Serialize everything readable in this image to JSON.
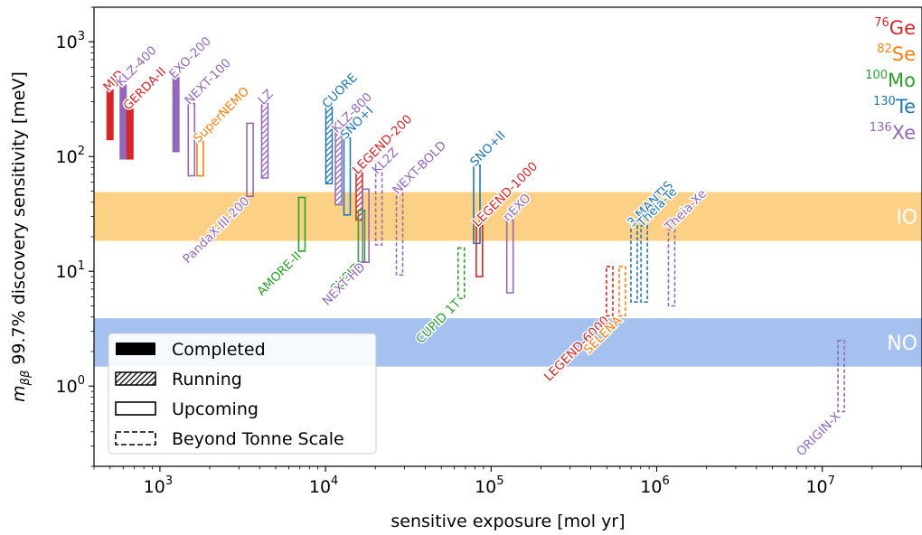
{
  "chart_data": {
    "type": "bar",
    "xlabel": "sensitive exposure [mol yr]",
    "ylabel_main": "m",
    "ylabel_sub": "ββ",
    "ylabel_rest": " 99.7% discovery sensitivity [meV]",
    "x_scale": "log",
    "y_scale": "log",
    "xlim": [
      400,
      40000000
    ],
    "ylim": [
      0.2,
      2000
    ],
    "x_ticks": [
      {
        "value": 1000,
        "base": "10",
        "exp": "3"
      },
      {
        "value": 10000,
        "base": "10",
        "exp": "4"
      },
      {
        "value": 100000,
        "base": "10",
        "exp": "5"
      },
      {
        "value": 1000000,
        "base": "10",
        "exp": "6"
      },
      {
        "value": 10000000,
        "base": "10",
        "exp": "7"
      }
    ],
    "y_ticks": [
      {
        "value": 1,
        "base": "10",
        "exp": "0"
      },
      {
        "value": 10,
        "base": "10",
        "exp": "1"
      },
      {
        "value": 100,
        "base": "10",
        "exp": "2"
      },
      {
        "value": 1000,
        "base": "10",
        "exp": "3"
      }
    ],
    "bands": [
      {
        "name": "IO",
        "y_low": 18.4,
        "y_high": 49,
        "color": "#fdd185"
      },
      {
        "name": "NO",
        "y_low": 1.48,
        "y_high": 3.9,
        "color": "#a6c1f0"
      }
    ],
    "isotopes": [
      {
        "mass": "76",
        "symbol": "Ge",
        "color": "#d62728"
      },
      {
        "mass": "82",
        "symbol": "Se",
        "color": "#ff7f0e"
      },
      {
        "mass": "100",
        "symbol": "Mo",
        "color": "#2ca02c"
      },
      {
        "mass": "130",
        "symbol": "Te",
        "color": "#1f77b4"
      },
      {
        "mass": "136",
        "symbol": "Xe",
        "color": "#9467bd"
      }
    ],
    "status_legend": [
      {
        "key": "completed",
        "label": "Completed"
      },
      {
        "key": "running",
        "label": "Running"
      },
      {
        "key": "upcoming",
        "label": "Upcoming"
      },
      {
        "key": "beyond",
        "label": "Beyond Tonne Scale"
      }
    ],
    "experiments": [
      {
        "name": "MJD",
        "isotope": "Ge",
        "status": "completed",
        "x": 500,
        "y_low": 140,
        "y_high": 380
      },
      {
        "name": "KLZ-400",
        "isotope": "Xe",
        "status": "completed",
        "x": 600,
        "y_low": 95,
        "y_high": 420
      },
      {
        "name": "GERDA-II",
        "isotope": "Ge",
        "status": "completed",
        "x": 660,
        "y_low": 95,
        "y_high": 260
      },
      {
        "name": "EXO-200",
        "isotope": "Xe",
        "status": "completed",
        "x": 1250,
        "y_low": 110,
        "y_high": 490
      },
      {
        "name": "NEXT-100",
        "isotope": "Xe",
        "status": "upcoming",
        "x": 1550,
        "y_low": 68,
        "y_high": 290
      },
      {
        "name": "SuperNEMO",
        "isotope": "Se",
        "status": "upcoming",
        "x": 1750,
        "y_low": 68,
        "y_high": 135
      },
      {
        "name": "PandaX-III-200",
        "isotope": "Xe",
        "status": "upcoming",
        "x": 3500,
        "y_low": 45,
        "y_high": 195
      },
      {
        "name": "LZ",
        "isotope": "Xe",
        "status": "running",
        "x": 4300,
        "y_low": 65,
        "y_high": 290
      },
      {
        "name": "AMORE-II",
        "isotope": "Mo",
        "status": "upcoming",
        "x": 7200,
        "y_low": 15,
        "y_high": 44
      },
      {
        "name": "CUORE",
        "isotope": "Te",
        "status": "running",
        "x": 10500,
        "y_low": 58,
        "y_high": 270
      },
      {
        "name": "KLZ-800",
        "isotope": "Xe",
        "status": "running",
        "x": 12000,
        "y_low": 38,
        "y_high": 165
      },
      {
        "name": "SNO+I",
        "isotope": "Te",
        "status": "upcoming",
        "x": 13500,
        "y_low": 31,
        "y_high": 145
      },
      {
        "name": "LEGEND-200",
        "isotope": "Ge",
        "status": "running",
        "x": 16000,
        "y_low": 28,
        "y_high": 72
      },
      {
        "name": "CUPID",
        "isotope": "Mo",
        "status": "upcoming",
        "x": 16500,
        "y_low": 12,
        "y_high": 34
      },
      {
        "name": "NEXT-HD",
        "isotope": "Xe",
        "status": "upcoming",
        "x": 17500,
        "y_low": 12,
        "y_high": 52
      },
      {
        "name": "KL2Z",
        "isotope": "Xe",
        "status": "beyond",
        "x": 21000,
        "y_low": 17,
        "y_high": 72
      },
      {
        "name": "NEXT-BOLD",
        "isotope": "Xe",
        "status": "beyond",
        "x": 28000,
        "y_low": 9.3,
        "y_high": 48
      },
      {
        "name": "CUPID 1T",
        "isotope": "Mo",
        "status": "beyond",
        "x": 66000,
        "y_low": 5.8,
        "y_high": 16
      },
      {
        "name": "SNO+II",
        "isotope": "Te",
        "status": "upcoming",
        "x": 82000,
        "y_low": 17.5,
        "y_high": 84
      },
      {
        "name": "LEGEND-1000",
        "isotope": "Ge",
        "status": "upcoming",
        "x": 85000,
        "y_low": 9,
        "y_high": 25
      },
      {
        "name": "nEXO",
        "isotope": "Xe",
        "status": "upcoming",
        "x": 130000,
        "y_low": 6.5,
        "y_high": 28
      },
      {
        "name": "LEGEND-6000",
        "isotope": "Ge",
        "status": "beyond",
        "x": 520000,
        "y_low": 4.1,
        "y_high": 11
      },
      {
        "name": "SELENA",
        "isotope": "Se",
        "status": "beyond",
        "x": 620000,
        "y_low": 4.1,
        "y_high": 11
      },
      {
        "name": "3 MANTIS",
        "isotope": "Te",
        "status": "beyond",
        "x": 730000,
        "y_low": 5.4,
        "y_high": 25
      },
      {
        "name": "Theia-Te",
        "isotope": "Te",
        "status": "beyond",
        "x": 840000,
        "y_low": 5.4,
        "y_high": 25
      },
      {
        "name": "Theia-Xe",
        "isotope": "Xe",
        "status": "beyond",
        "x": 1230000,
        "y_low": 5,
        "y_high": 23
      },
      {
        "name": "ORIGIN-X",
        "isotope": "Xe",
        "status": "beyond",
        "x": 13000000,
        "y_low": 0.6,
        "y_high": 2.5
      }
    ]
  }
}
